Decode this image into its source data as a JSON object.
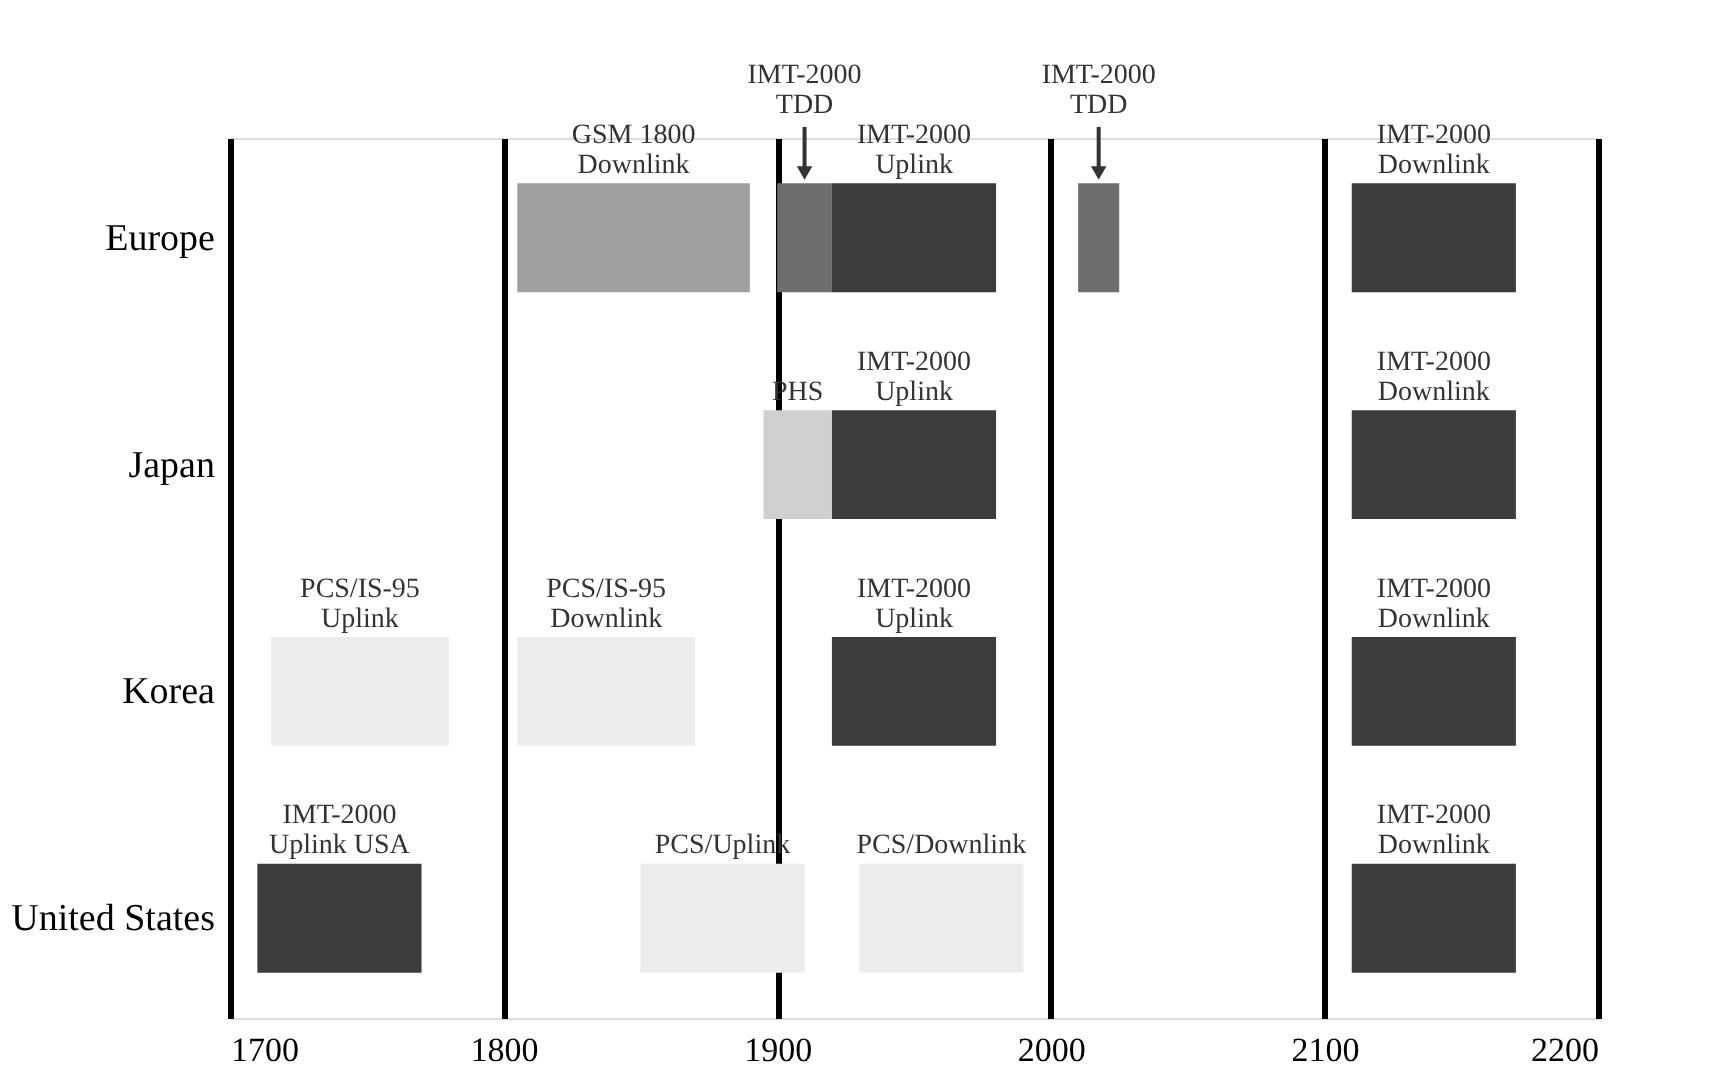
{
  "chart_data": {
    "type": "bar",
    "orientation": "horizontal",
    "categories": [
      "Europe",
      "Japan",
      "Korea",
      "United States"
    ],
    "series": [
      {
        "name": "GSM 1800 Downlink",
        "color": "#a0a0a0",
        "values": [
          85,
          null,
          null,
          null
        ],
        "base": [
          1805,
          null,
          null,
          null
        ]
      },
      {
        "name": "IMT-2000 TDD",
        "color": "#6e6e6e",
        "values": [
          20,
          null,
          null,
          null
        ],
        "base": [
          1900,
          null,
          null,
          null
        ]
      },
      {
        "name": "IMT-2000 TDD",
        "color": "#6e6e6e",
        "values": [
          15,
          null,
          null,
          null
        ],
        "base": [
          2010,
          null,
          null,
          null
        ]
      },
      {
        "name": "IMT-2000 Uplink",
        "color": "#3c3c3c",
        "values": [
          60,
          60,
          60,
          null
        ],
        "base": [
          1920,
          1920,
          1920,
          null
        ]
      },
      {
        "name": "IMT-2000 Downlink",
        "color": "#3c3c3c",
        "values": [
          60,
          60,
          60,
          60
        ],
        "base": [
          2110,
          2110,
          2110,
          2110
        ]
      },
      {
        "name": "PHS",
        "color": "#d0d0d0",
        "values": [
          null,
          25,
          null,
          null
        ],
        "base": [
          null,
          1895,
          null,
          null
        ]
      },
      {
        "name": "PCS/IS-95 Uplink",
        "color": "#ececec",
        "values": [
          null,
          null,
          65,
          null
        ],
        "base": [
          null,
          null,
          1715,
          null
        ]
      },
      {
        "name": "PCS/IS-95 Downlink",
        "color": "#ececec",
        "values": [
          null,
          null,
          65,
          null
        ],
        "base": [
          null,
          null,
          1805,
          null
        ]
      },
      {
        "name": "IMT-2000 Uplink USA",
        "color": "#3c3c3c",
        "values": [
          null,
          null,
          null,
          60
        ],
        "base": [
          null,
          null,
          null,
          1710
        ]
      },
      {
        "name": "PCS/Uplink",
        "color": "#ececec",
        "values": [
          null,
          null,
          null,
          60
        ],
        "base": [
          null,
          null,
          null,
          1850
        ]
      },
      {
        "name": "PCS/Downlink",
        "color": "#ececec",
        "values": [
          null,
          null,
          null,
          60
        ],
        "base": [
          null,
          null,
          null,
          1930
        ]
      }
    ],
    "xlim": [
      1700,
      2200
    ],
    "xticks": [
      1700,
      1800,
      1900,
      2000,
      2100,
      2200
    ],
    "grid": "x"
  }
}
